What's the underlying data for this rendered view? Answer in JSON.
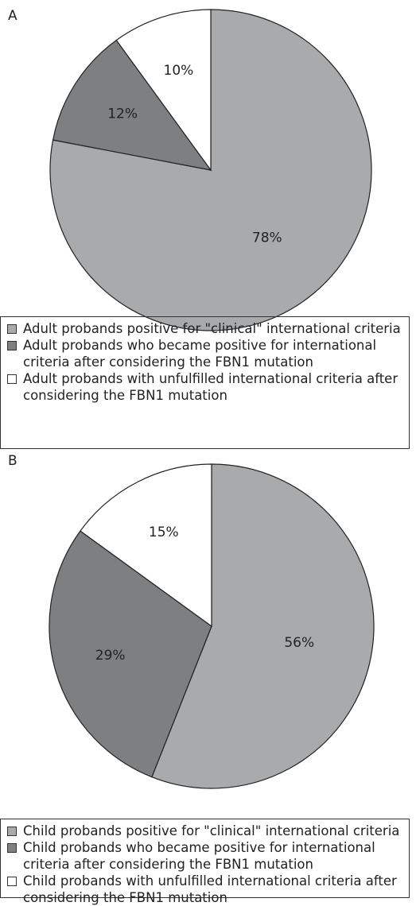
{
  "chart_data": [
    {
      "type": "pie",
      "panel": "A",
      "series": [
        {
          "name": "Adult probands positive for \"clinical\" international criteria",
          "color": "#a9aaac"
        },
        {
          "name": "Adult probands who became positive for international criteria after considering the FBN1 mutation",
          "color": "#7e7f81"
        },
        {
          "name": "Adult probands with unfulfilled international criteria after considering the FBN1 mutation",
          "color": "#ffffff"
        }
      ],
      "values": [
        78,
        12,
        10
      ],
      "value_labels": [
        "78%",
        "12%",
        "10%"
      ]
    },
    {
      "type": "pie",
      "panel": "B",
      "series": [
        {
          "name": "Child probands positive for \"clinical\" international criteria",
          "color": "#a9aaac"
        },
        {
          "name": "Child probands who became positive for international criteria after considering the FBN1 mutation",
          "color": "#7e7f81"
        },
        {
          "name": "Child probands with unfulfilled international criteria after considering the FBN1 mutation",
          "color": "#ffffff"
        }
      ],
      "values": [
        56,
        29,
        15
      ],
      "value_labels": [
        "56%",
        "29%",
        "15%"
      ]
    }
  ]
}
